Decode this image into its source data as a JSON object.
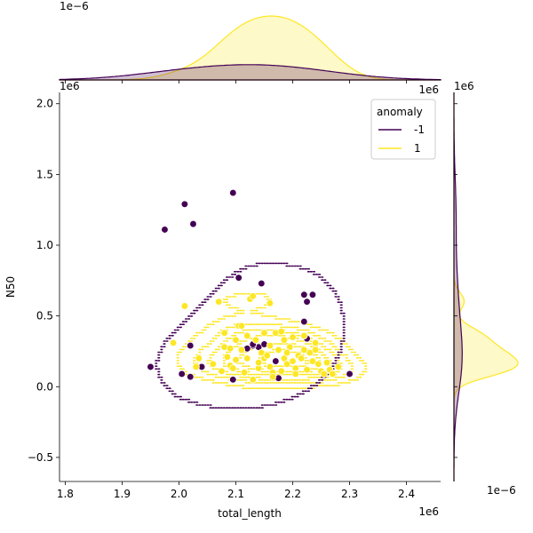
{
  "chart_data": {
    "type": "scatter",
    "xlabel": "total_length",
    "ylabel": "N50",
    "x_exponent": "1e6",
    "y_exponent": "1e6",
    "top_marginal_exponent": "1e−6",
    "right_marginal_exponent": "1e−6",
    "xlim": [
      1.79,
      2.46
    ],
    "ylim": [
      -0.67,
      2.08
    ],
    "x_ticks": [
      1.8,
      1.9,
      2.0,
      2.1,
      2.2,
      2.3,
      2.4
    ],
    "x_tick_labels": [
      "1.8",
      "1.9",
      "2.0",
      "2.1",
      "2.2",
      "2.3",
      "2.4"
    ],
    "y_ticks": [
      -0.5,
      0.0,
      0.5,
      1.0,
      1.5,
      2.0
    ],
    "y_tick_labels": [
      "−0.5",
      "0.0",
      "0.5",
      "1.0",
      "1.5",
      "2.0"
    ],
    "grid": false,
    "legend": {
      "title": "anomaly",
      "placement": "top-right",
      "entries": [
        {
          "label": "-1",
          "color": "#440154"
        },
        {
          "label": "1",
          "color": "#fde725"
        }
      ]
    },
    "series": [
      {
        "name": "-1",
        "color": "#440154",
        "points": [
          [
            1.95,
            0.14
          ],
          [
            1.975,
            1.11
          ],
          [
            2.01,
            1.29
          ],
          [
            2.025,
            1.15
          ],
          [
            2.095,
            1.37
          ],
          [
            2.005,
            0.09
          ],
          [
            2.02,
            0.29
          ],
          [
            2.04,
            0.14
          ],
          [
            2.02,
            0.07
          ],
          [
            2.095,
            0.05
          ],
          [
            2.105,
            0.77
          ],
          [
            2.145,
            0.73
          ],
          [
            2.14,
            0.28
          ],
          [
            2.13,
            0.29
          ],
          [
            2.22,
            0.65
          ],
          [
            2.235,
            0.65
          ],
          [
            2.225,
            0.6
          ],
          [
            2.22,
            0.46
          ],
          [
            2.225,
            0.34
          ],
          [
            2.175,
            0.06
          ],
          [
            2.3,
            0.09
          ],
          [
            2.13,
            0.3
          ],
          [
            2.12,
            0.27
          ],
          [
            2.15,
            0.3
          ],
          [
            2.17,
            0.18
          ]
        ]
      },
      {
        "name": "1",
        "color": "#fde725",
        "points": [
          [
            1.99,
            0.31
          ],
          [
            2.01,
            0.57
          ],
          [
            2.03,
            0.14
          ],
          [
            2.035,
            0.2
          ],
          [
            2.06,
            0.16
          ],
          [
            2.07,
            0.6
          ],
          [
            2.08,
            0.28
          ],
          [
            2.08,
            0.38
          ],
          [
            2.085,
            0.21
          ],
          [
            2.09,
            0.15
          ],
          [
            2.095,
            0.13
          ],
          [
            2.1,
            0.33
          ],
          [
            2.105,
            0.43
          ],
          [
            2.11,
            0.43
          ],
          [
            2.11,
            0.26
          ],
          [
            2.115,
            0.1
          ],
          [
            2.12,
            0.36
          ],
          [
            2.125,
            0.62
          ],
          [
            2.13,
            0.64
          ],
          [
            2.135,
            0.33
          ],
          [
            2.14,
            0.13
          ],
          [
            2.145,
            0.24
          ],
          [
            2.15,
            0.2
          ],
          [
            2.155,
            0.22
          ],
          [
            2.16,
            0.59
          ],
          [
            2.16,
            0.14
          ],
          [
            2.165,
            0.1
          ],
          [
            2.17,
            0.38
          ],
          [
            2.175,
            0.26
          ],
          [
            2.18,
            0.39
          ],
          [
            2.185,
            0.2
          ],
          [
            2.19,
            0.16
          ],
          [
            2.195,
            0.28
          ],
          [
            2.2,
            0.35
          ],
          [
            2.205,
            0.13
          ],
          [
            2.21,
            0.22
          ],
          [
            2.215,
            0.2
          ],
          [
            2.22,
            0.36
          ],
          [
            2.225,
            0.12
          ],
          [
            2.23,
            0.24
          ],
          [
            2.235,
            0.18
          ],
          [
            2.24,
            0.31
          ],
          [
            2.245,
            0.16
          ],
          [
            2.25,
            0.11
          ],
          [
            2.255,
            0.09
          ],
          [
            2.26,
            0.17
          ],
          [
            2.265,
            0.12
          ],
          [
            2.27,
            0.09
          ],
          [
            2.28,
            0.14
          ],
          [
            2.09,
            0.27
          ],
          [
            2.12,
            0.2
          ],
          [
            2.14,
            0.17
          ],
          [
            2.16,
            0.29
          ],
          [
            2.18,
            0.11
          ],
          [
            2.2,
            0.18
          ],
          [
            2.22,
            0.26
          ],
          [
            2.1,
            0.19
          ],
          [
            2.13,
            0.05
          ],
          [
            2.15,
            0.38
          ],
          [
            2.19,
            0.24
          ],
          [
            2.075,
            0.11
          ],
          [
            2.24,
            0.26
          ],
          [
            2.205,
            0.09
          ],
          [
            2.165,
            0.07
          ],
          [
            2.185,
            0.33
          ]
        ]
      }
    ]
  }
}
